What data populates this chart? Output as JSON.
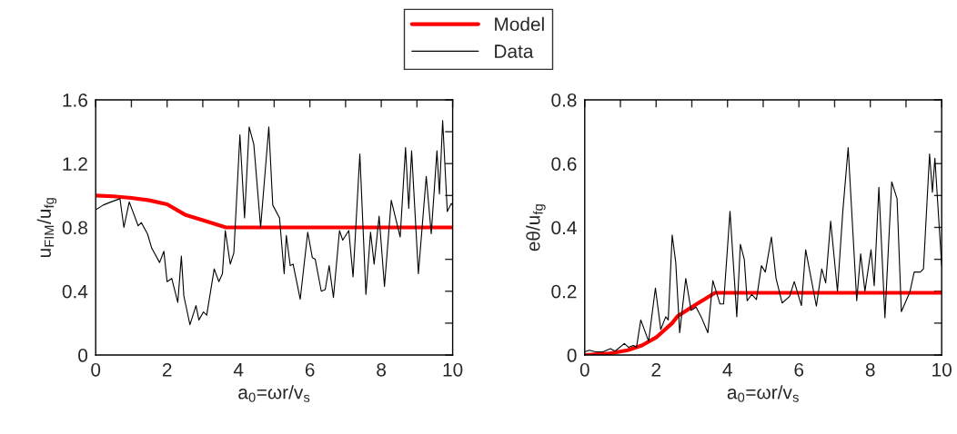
{
  "chart_data": [
    {
      "type": "line",
      "xlabel": "a$_{0}$=ωr/v$_{s}$",
      "ylabel": "u$_{FIM}$/u$_{fg}$",
      "legend": "top",
      "xlim": [
        0,
        10
      ],
      "xticks": [
        0,
        {
          "value": 1,
          "label": null
        },
        2,
        {
          "value": 3,
          "label": null
        },
        4,
        {
          "value": 5,
          "label": null
        },
        6,
        {
          "value": 7,
          "label": null
        },
        8,
        {
          "value": 9,
          "label": null
        },
        10
      ],
      "ylim": [
        0,
        1.6
      ],
      "yticks": [
        0,
        {
          "value": 0.2,
          "label": null
        },
        0.4,
        {
          "value": 0.6,
          "label": null
        },
        0.8,
        {
          "value": 1.0,
          "label": null
        },
        1.2,
        {
          "value": 1.4,
          "label": null
        },
        1.6
      ],
      "series": [
        {
          "name": "Model",
          "color": "#ff0000",
          "x": [
            0,
            0.5,
            1.0,
            1.5,
            2.0,
            2.5,
            3.0,
            3.65,
            10
          ],
          "values": [
            1.0,
            0.995,
            0.985,
            0.97,
            0.945,
            0.88,
            0.845,
            0.8,
            0.8
          ]
        },
        {
          "name": "Data",
          "color": "#000000",
          "x": [
            0,
            0.21,
            0.43,
            0.68,
            0.79,
            0.94,
            1.19,
            1.28,
            1.45,
            1.57,
            1.79,
            1.91,
            2.0,
            2.13,
            2.3,
            2.4,
            2.47,
            2.64,
            2.81,
            2.89,
            3.02,
            3.11,
            3.32,
            3.45,
            3.55,
            3.63,
            3.77,
            3.87,
            4.04,
            4.17,
            4.3,
            4.43,
            4.62,
            4.85,
            4.96,
            5.15,
            5.28,
            5.34,
            5.45,
            5.53,
            5.73,
            5.94,
            6.07,
            6.15,
            6.32,
            6.43,
            6.54,
            6.66,
            6.83,
            6.92,
            7.09,
            7.21,
            7.4,
            7.57,
            7.7,
            7.8,
            7.94,
            8.09,
            8.28,
            8.53,
            8.68,
            8.77,
            8.85,
            9.04,
            9.26,
            9.4,
            9.56,
            9.63,
            9.72,
            9.85,
            9.96,
            10.0
          ],
          "values": [
            0.91,
            0.94,
            0.96,
            0.98,
            0.8,
            0.96,
            0.81,
            0.83,
            0.76,
            0.67,
            0.58,
            0.65,
            0.46,
            0.48,
            0.33,
            0.62,
            0.37,
            0.19,
            0.31,
            0.22,
            0.27,
            0.25,
            0.54,
            0.46,
            0.51,
            0.78,
            0.57,
            0.64,
            1.38,
            0.86,
            1.43,
            1.32,
            0.8,
            1.43,
            0.94,
            0.86,
            0.51,
            0.75,
            0.56,
            0.57,
            0.35,
            0.77,
            0.61,
            0.6,
            0.4,
            0.41,
            0.56,
            0.36,
            0.78,
            0.72,
            0.78,
            0.49,
            1.26,
            0.38,
            0.77,
            0.57,
            0.87,
            0.43,
            0.97,
            0.74,
            1.3,
            0.92,
            1.28,
            0.51,
            1.12,
            0.76,
            1.28,
            1.01,
            1.47,
            0.9,
            0.95,
            0.94
          ]
        }
      ]
    },
    {
      "type": "line",
      "xlabel": "a$_{0}$=ωr/v$_{s}$",
      "ylabel": "eθ/u$_{fg}$",
      "xlim": [
        0,
        10
      ],
      "xticks": [
        0,
        {
          "value": 1,
          "label": null
        },
        2,
        {
          "value": 3,
          "label": null
        },
        4,
        {
          "value": 5,
          "label": null
        },
        6,
        {
          "value": 7,
          "label": null
        },
        8,
        {
          "value": 9,
          "label": null
        },
        10
      ],
      "ylim": [
        0,
        0.8
      ],
      "yticks": [
        0,
        {
          "value": 0.1,
          "label": null
        },
        0.2,
        {
          "value": 0.3,
          "label": null
        },
        0.4,
        {
          "value": 0.5,
          "label": null
        },
        0.6,
        {
          "value": 0.7,
          "label": null
        },
        0.8
      ],
      "series": [
        {
          "color": "#ff0000",
          "x": [
            0,
            0.7,
            1.2,
            1.6,
            2.0,
            2.45,
            2.6,
            3.1,
            3.65,
            10
          ],
          "values": [
            0,
            0.005,
            0.015,
            0.03,
            0.055,
            0.1,
            0.122,
            0.157,
            0.195,
            0.195
          ]
        },
        {
          "color": "#000000",
          "x": [
            0,
            0.13,
            0.3,
            0.51,
            0.72,
            0.85,
            1.11,
            1.23,
            1.36,
            1.45,
            1.57,
            1.79,
            1.98,
            2.13,
            2.27,
            2.34,
            2.45,
            2.55,
            2.66,
            2.83,
            2.98,
            3.12,
            3.28,
            3.45,
            3.59,
            3.79,
            3.89,
            4.07,
            4.26,
            4.36,
            4.47,
            4.55,
            4.68,
            4.81,
            4.95,
            5.06,
            5.23,
            5.36,
            5.53,
            5.74,
            5.87,
            6.07,
            6.19,
            6.49,
            6.64,
            6.75,
            6.89,
            7.08,
            7.23,
            7.38,
            7.62,
            7.73,
            7.85,
            8.02,
            8.11,
            8.24,
            8.41,
            8.6,
            8.75,
            8.87,
            9.11,
            9.23,
            9.4,
            9.49,
            9.66,
            9.74,
            9.81,
            10.0
          ],
          "values": [
            0.01,
            0.015,
            0.01,
            0.01,
            0.02,
            0.012,
            0.036,
            0.024,
            0.03,
            0.024,
            0.11,
            0.043,
            0.21,
            0.08,
            0.12,
            0.11,
            0.376,
            0.29,
            0.07,
            0.24,
            0.14,
            0.15,
            0.115,
            0.07,
            0.233,
            0.16,
            0.16,
            0.45,
            0.12,
            0.347,
            0.3,
            0.17,
            0.19,
            0.174,
            0.28,
            0.26,
            0.37,
            0.24,
            0.163,
            0.184,
            0.23,
            0.155,
            0.33,
            0.153,
            0.27,
            0.226,
            0.42,
            0.2,
            0.45,
            0.65,
            0.17,
            0.317,
            0.2,
            0.33,
            0.217,
            0.526,
            0.117,
            0.543,
            0.49,
            0.136,
            0.198,
            0.26,
            0.26,
            0.27,
            0.63,
            0.51,
            0.617,
            0.28
          ]
        }
      ]
    }
  ]
}
